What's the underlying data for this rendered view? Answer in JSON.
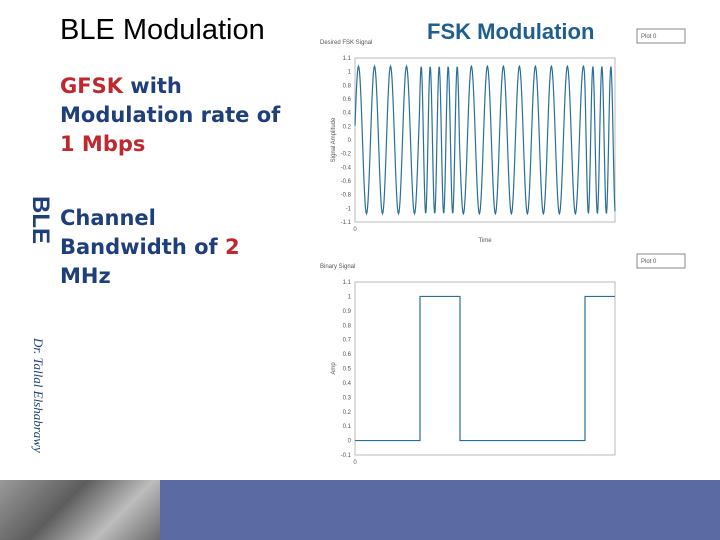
{
  "slide": {
    "title": "BLE Modulation",
    "side_label": "BLE",
    "author": "Dr. Tallal Elshabrawy",
    "bullets": [
      {
        "parts": [
          {
            "text": "GFSK",
            "color": "#c0282d"
          },
          {
            "text": " with Modulation rate of ",
            "color": "#1f3f7a"
          },
          {
            "text": "1 Mbps",
            "color": "#c0282d"
          }
        ]
      },
      {
        "parts": [
          {
            "text": "Channel Bandwidth of ",
            "color": "#1f3f7a"
          },
          {
            "text": "2",
            "color": "#c0282d"
          },
          {
            "text": " MHz",
            "color": "#1f3f7a"
          }
        ]
      }
    ],
    "figure_heading": "FSK Modulation",
    "plots": [
      {
        "title": "Desired FSK Signal",
        "y_label": "Signal Amplitude",
        "x_label": "Time",
        "x_tick": "0",
        "legend": "Plot 0",
        "y_ticks": [
          "1.1",
          "1",
          "0.8",
          "0.6",
          "0.4",
          "0.2",
          "0",
          "-0.2",
          "-0.4",
          "-0.6",
          "-0.8",
          "-1",
          "-1.1"
        ]
      },
      {
        "title": "Binary Signal",
        "y_label": "Amp",
        "x_tick": "0",
        "legend": "Plot 0",
        "y_ticks": [
          "1.1",
          "1",
          "0.9",
          "0.8",
          "0.7",
          "0.6",
          "0.5",
          "0.4",
          "0.3",
          "0.2",
          "0.1",
          "0",
          "-0.1"
        ]
      }
    ]
  }
}
